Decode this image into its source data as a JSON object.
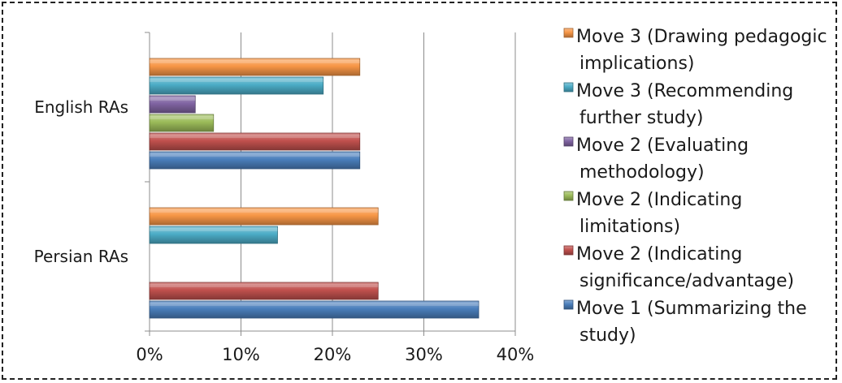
{
  "chart_data": {
    "type": "bar",
    "orientation": "horizontal",
    "title": "",
    "xlabel": "",
    "ylabel": "",
    "xlim": [
      0,
      40
    ],
    "x_ticks": [
      "0%",
      "10%",
      "20%",
      "30%",
      "40%"
    ],
    "tick_values": [
      0,
      10,
      20,
      30,
      40
    ],
    "categories": [
      "English RAs",
      "Persian  RAs"
    ],
    "grid": true,
    "legend_position": "right",
    "series": [
      {
        "name": "Move 1 (Summarizing the study)",
        "values": [
          23,
          36
        ],
        "color": "#4a7ebb"
      },
      {
        "name": "Move 2 (Indicating significance/advantage)",
        "values": [
          23,
          25
        ],
        "color": "#c0504d"
      },
      {
        "name": "Move 2 (Indicating limitations)",
        "values": [
          7,
          0
        ],
        "color": "#9bbb59"
      },
      {
        "name": "Move 2 (Evaluating methodology)",
        "values": [
          5,
          0
        ],
        "color": "#8064a2"
      },
      {
        "name": "Move 3 (Recommending further study)",
        "values": [
          19,
          14
        ],
        "color": "#4bacc6"
      },
      {
        "name": "Move 3 (Drawing pedagogic implications)",
        "values": [
          23,
          25
        ],
        "color": "#f79646"
      }
    ],
    "legend_lines": [
      [
        "Move 3 (Drawing pedagogic",
        "implications)"
      ],
      [
        "Move 3 (Recommending",
        "further study)"
      ],
      [
        "Move 2 (Evaluating",
        "methodology)"
      ],
      [
        "Move 2 (Indicating",
        "limitations)"
      ],
      [
        "Move 2 (Indicating",
        "significance/advantage)"
      ],
      [
        "Move 1 (Summarizing the",
        "study)"
      ]
    ]
  }
}
